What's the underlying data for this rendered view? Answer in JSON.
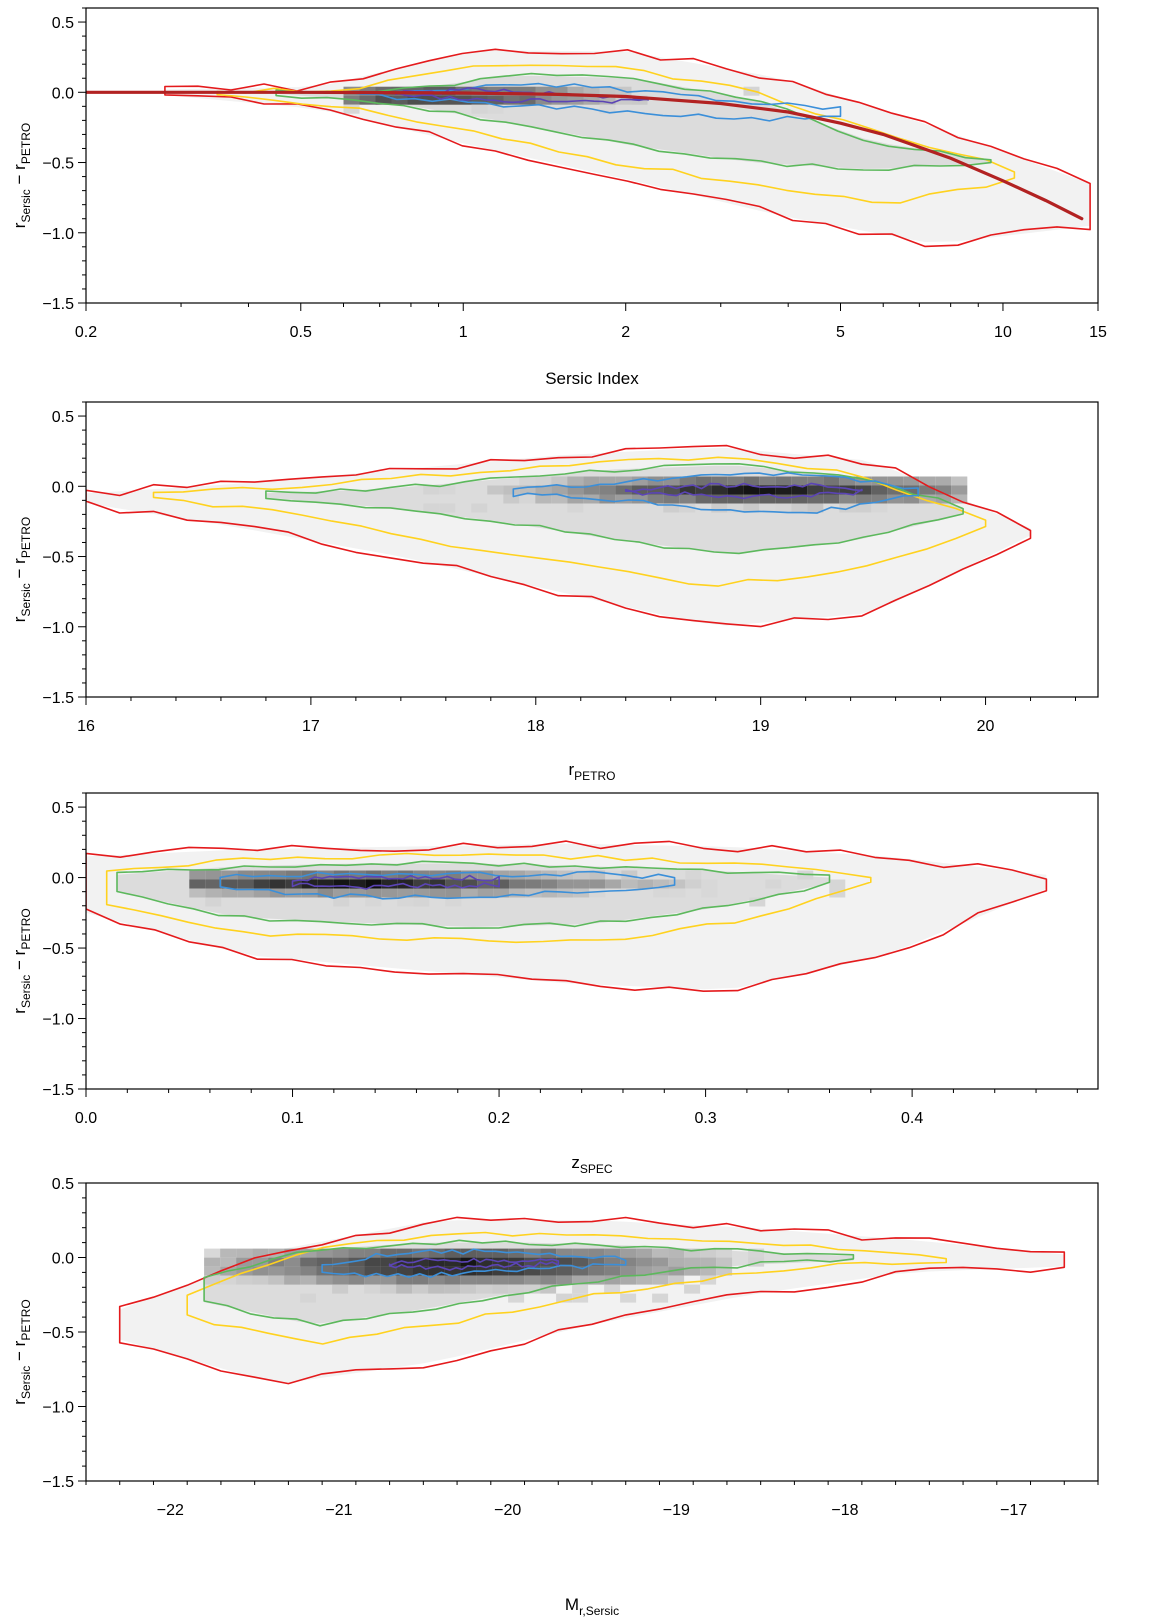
{
  "chart_data": [
    {
      "type": "heatmap",
      "xscale": "log",
      "xlim": [
        0.2,
        15
      ],
      "ylim": [
        -1.5,
        0.6
      ],
      "xticks": [
        0.2,
        0.5,
        1,
        2,
        5,
        10,
        15
      ],
      "xtick_labels": [
        "0.2",
        "0.5",
        "1",
        "2",
        "5",
        "10",
        "15"
      ],
      "yticks": [
        -1.5,
        -1.0,
        -0.5,
        0.0,
        0.5
      ],
      "ytick_labels": [
        "−1.5",
        "−1.0",
        "−0.5",
        "0.0",
        "0.5"
      ],
      "xlabel": {
        "text": "Sersic Index",
        "sub": ""
      },
      "ylabel": {
        "main1": "r",
        "sub1": "Sersic",
        "mid": " − r",
        "sub2": "PETRO"
      },
      "density_core": {
        "x": [
          0.6,
          3.5
        ],
        "y": [
          -0.12,
          0.04
        ],
        "peak_x": 0.9,
        "peak_y": -0.03
      },
      "contours": [
        {
          "color": "#e41a1c",
          "x": [
            0.28,
            14.5
          ],
          "y_top": [
            0.02,
            0.04,
            0.3,
            0.29,
            0.1,
            -0.25,
            -0.65
          ],
          "y_bottom": [
            -0.02,
            -0.12,
            -0.38,
            -0.62,
            -0.88,
            -1.08,
            -0.95
          ]
        },
        {
          "color": "#ffd21f",
          "x": [
            0.35,
            10.5
          ],
          "y_top": [
            0.01,
            0.02,
            0.2,
            0.18,
            0.02,
            -0.3,
            -0.55
          ],
          "y_bottom": [
            -0.01,
            -0.1,
            -0.3,
            -0.5,
            -0.65,
            -0.8,
            -0.62
          ]
        },
        {
          "color": "#5cb85c",
          "x": [
            0.45,
            9.5
          ],
          "y_top": [
            0.0,
            0.01,
            0.12,
            0.1,
            -0.05,
            -0.35,
            -0.48
          ],
          "y_bottom": [
            -0.01,
            -0.08,
            -0.22,
            -0.38,
            -0.5,
            -0.55,
            -0.5
          ]
        },
        {
          "color": "#3b8fd9",
          "x": [
            0.6,
            5.0
          ],
          "y_top": [
            0.0,
            0.01,
            0.05,
            0.04,
            -0.02,
            -0.08,
            -0.12
          ],
          "y_bottom": [
            -0.01,
            -0.05,
            -0.09,
            -0.12,
            -0.16,
            -0.2,
            -0.16
          ]
        },
        {
          "color": "#5b44b5",
          "x": [
            0.75,
            2.2
          ],
          "y_top": [
            0.0,
            0.0,
            0.02,
            0.01,
            -0.02,
            -0.04,
            -0.05
          ],
          "y_bottom": [
            -0.01,
            -0.03,
            -0.05,
            -0.06,
            -0.07,
            -0.07,
            -0.06
          ]
        }
      ],
      "fit_curve": {
        "color": "#b22222",
        "x": [
          0.2,
          0.3,
          0.5,
          1,
          1.5,
          2,
          3,
          4,
          5,
          6,
          8,
          10,
          12,
          14
        ],
        "y": [
          0,
          0,
          0,
          -0.005,
          -0.015,
          -0.03,
          -0.08,
          -0.14,
          -0.22,
          -0.3,
          -0.47,
          -0.63,
          -0.77,
          -0.9
        ]
      }
    },
    {
      "type": "heatmap",
      "xlim": [
        16,
        20.5
      ],
      "ylim": [
        -1.5,
        0.6
      ],
      "xticks": [
        16,
        17,
        18,
        19,
        20
      ],
      "xtick_labels": [
        "16",
        "17",
        "18",
        "19",
        "20"
      ],
      "yticks": [
        -1.5,
        -1.0,
        -0.5,
        0.0,
        0.5
      ],
      "ytick_labels": [
        "−1.5",
        "−1.0",
        "−0.5",
        "0.0",
        "0.5"
      ],
      "xlabel": {
        "text": "r",
        "sub": "PETRO"
      },
      "ylabel": {
        "main1": "r",
        "sub1": "Sersic",
        "mid": " − r",
        "sub2": "PETRO"
      },
      "density_core": {
        "x": [
          17.5,
          19.9
        ],
        "y": [
          -0.18,
          0.07
        ],
        "peak_x": 19.0,
        "peak_y": -0.03
      },
      "contours": [
        {
          "color": "#e41a1c",
          "x": [
            16.0,
            20.2
          ],
          "y_top": [
            -0.05,
            0.02,
            0.12,
            0.22,
            0.28,
            0.18,
            -0.3
          ],
          "y_bottom": [
            -0.12,
            -0.3,
            -0.5,
            -0.75,
            -1.0,
            -0.9,
            -0.35
          ]
        },
        {
          "color": "#ffd21f",
          "x": [
            16.3,
            20.0
          ],
          "y_top": [
            -0.04,
            0.0,
            0.08,
            0.16,
            0.2,
            0.12,
            -0.25
          ],
          "y_bottom": [
            -0.08,
            -0.2,
            -0.4,
            -0.55,
            -0.7,
            -0.62,
            -0.3
          ]
        },
        {
          "color": "#5cb85c",
          "x": [
            16.8,
            19.9
          ],
          "y_top": [
            -0.05,
            -0.02,
            0.05,
            0.12,
            0.15,
            0.08,
            -0.15
          ],
          "y_bottom": [
            -0.08,
            -0.15,
            -0.25,
            -0.38,
            -0.48,
            -0.4,
            -0.2
          ]
        },
        {
          "color": "#3b8fd9",
          "x": [
            17.9,
            19.7
          ],
          "y_top": [
            -0.02,
            0.0,
            0.04,
            0.07,
            0.08,
            0.06,
            -0.02
          ],
          "y_bottom": [
            -0.06,
            -0.08,
            -0.12,
            -0.16,
            -0.2,
            -0.15,
            -0.06
          ]
        },
        {
          "color": "#5b44b5",
          "x": [
            18.4,
            19.45
          ],
          "y_top": [
            -0.02,
            -0.01,
            0.0,
            0.01,
            0.01,
            0.0,
            -0.02
          ],
          "y_bottom": [
            -0.04,
            -0.05,
            -0.06,
            -0.07,
            -0.07,
            -0.06,
            -0.04
          ]
        }
      ]
    },
    {
      "type": "heatmap",
      "xlim": [
        0.0,
        0.49
      ],
      "ylim": [
        -1.5,
        0.6
      ],
      "xticks": [
        0.0,
        0.1,
        0.2,
        0.3,
        0.4
      ],
      "xtick_labels": [
        "0.0",
        "0.1",
        "0.2",
        "0.3",
        "0.4"
      ],
      "yticks": [
        -1.5,
        -1.0,
        -0.5,
        0.0,
        0.5
      ],
      "ytick_labels": [
        "−1.5",
        "−1.0",
        "−0.5",
        "0.0",
        "0.5"
      ],
      "xlabel": {
        "text": "z",
        "sub": "SPEC"
      },
      "ylabel": {
        "main1": "r",
        "sub1": "Sersic",
        "mid": " − r",
        "sub2": "PETRO"
      },
      "density_core": {
        "x": [
          0.05,
          0.36
        ],
        "y": [
          -0.15,
          0.05
        ],
        "peak_x": 0.13,
        "peak_y": -0.04
      },
      "contours": [
        {
          "color": "#e41a1c",
          "x": [
            0.0,
            0.465
          ],
          "y_top": [
            0.15,
            0.2,
            0.22,
            0.24,
            0.22,
            0.15,
            0.02
          ],
          "y_bottom": [
            -0.25,
            -0.55,
            -0.65,
            -0.75,
            -0.8,
            -0.55,
            -0.08
          ]
        },
        {
          "color": "#ffd21f",
          "x": [
            0.01,
            0.38
          ],
          "y_top": [
            0.05,
            0.12,
            0.15,
            0.16,
            0.14,
            0.1,
            0.0
          ],
          "y_bottom": [
            -0.2,
            -0.4,
            -0.42,
            -0.45,
            -0.45,
            -0.3,
            -0.05
          ]
        },
        {
          "color": "#5cb85c",
          "x": [
            0.015,
            0.36
          ],
          "y_top": [
            0.02,
            0.08,
            0.1,
            0.1,
            0.08,
            0.05,
            0.0
          ],
          "y_bottom": [
            -0.1,
            -0.28,
            -0.32,
            -0.35,
            -0.33,
            -0.22,
            -0.04
          ]
        },
        {
          "color": "#3b8fd9",
          "x": [
            0.065,
            0.285
          ],
          "y_top": [
            0.0,
            0.02,
            0.03,
            0.03,
            0.02,
            0.03,
            0.0
          ],
          "y_bottom": [
            -0.06,
            -0.12,
            -0.14,
            -0.13,
            -0.12,
            -0.1,
            -0.05
          ]
        },
        {
          "color": "#5b44b5",
          "x": [
            0.1,
            0.2
          ],
          "y_top": [
            -0.01,
            0.0,
            0.0,
            0.0,
            0.0,
            0.0,
            -0.01
          ],
          "y_bottom": [
            -0.05,
            -0.06,
            -0.07,
            -0.06,
            -0.06,
            -0.06,
            -0.05
          ]
        }
      ]
    },
    {
      "type": "heatmap",
      "xlim": [
        -22.5,
        -16.5
      ],
      "ylim": [
        -1.5,
        0.5
      ],
      "xticks": [
        -22,
        -21,
        -20,
        -19,
        -18,
        -17
      ],
      "xtick_labels": [
        "−22",
        "−21",
        "−20",
        "−19",
        "−18",
        "−17"
      ],
      "yticks": [
        -1.5,
        -1.0,
        -0.5,
        0.0,
        0.5
      ],
      "ytick_labels": [
        "−1.5",
        "−1.0",
        "−0.5",
        "0.0",
        "0.5"
      ],
      "xlabel": {
        "text": "M",
        "sub": "r,Sersic"
      },
      "ylabel": {
        "main1": "r",
        "sub1": "Sersic",
        "mid": " − r",
        "sub2": "PETRO"
      },
      "density_core": {
        "x": [
          -21.8,
          -18.5
        ],
        "y": [
          -0.28,
          0.06
        ],
        "peak_x": -20.3,
        "peak_y": -0.05
      },
      "contours": [
        {
          "color": "#e41a1c",
          "x": [
            -22.3,
            -16.7
          ],
          "y_top": [
            -0.35,
            0.05,
            0.25,
            0.25,
            0.2,
            0.12,
            0.02
          ],
          "y_bottom": [
            -0.55,
            -0.85,
            -0.7,
            -0.45,
            -0.25,
            -0.1,
            -0.06
          ]
        },
        {
          "color": "#ffd21f",
          "x": [
            -21.9,
            -17.4
          ],
          "y_top": [
            -0.25,
            0.05,
            0.16,
            0.16,
            0.12,
            0.07,
            0.0
          ],
          "y_bottom": [
            -0.4,
            -0.58,
            -0.45,
            -0.28,
            -0.15,
            -0.06,
            -0.02
          ]
        },
        {
          "color": "#5cb85c",
          "x": [
            -21.8,
            -17.95
          ],
          "y_top": [
            -0.15,
            0.05,
            0.1,
            0.1,
            0.08,
            0.04,
            0.01
          ],
          "y_bottom": [
            -0.3,
            -0.45,
            -0.35,
            -0.22,
            -0.12,
            -0.05,
            -0.02
          ]
        },
        {
          "color": "#3b8fd9",
          "x": [
            -21.1,
            -19.3
          ],
          "y_top": [
            -0.05,
            0.01,
            0.04,
            0.04,
            0.03,
            0.02,
            -0.01
          ],
          "y_bottom": [
            -0.1,
            -0.12,
            -0.12,
            -0.1,
            -0.08,
            -0.06,
            -0.05
          ]
        },
        {
          "color": "#5b44b5",
          "x": [
            -20.7,
            -19.7
          ],
          "y_top": [
            -0.04,
            -0.02,
            -0.02,
            -0.02,
            -0.02,
            -0.02,
            -0.03
          ],
          "y_bottom": [
            -0.05,
            -0.06,
            -0.07,
            -0.06,
            -0.05,
            -0.05,
            -0.04
          ]
        }
      ]
    }
  ]
}
